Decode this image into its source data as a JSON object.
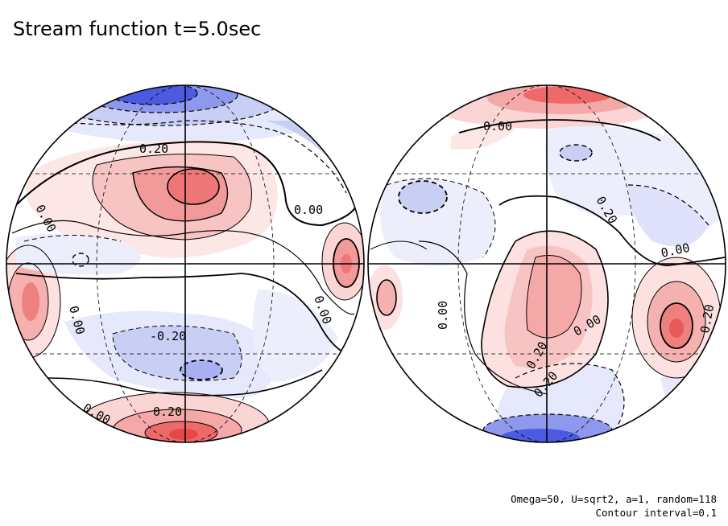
{
  "title": "Stream function t=5.0sec",
  "footer": {
    "params": "Omega=50, U=sqrt2, a=1, random=118",
    "contour": "Contour interval=0.1"
  },
  "colors": {
    "positive": "#e8464a",
    "negative": "#3c4ee0",
    "zero_bg": "#ffffff",
    "lines": "#000000"
  },
  "hemispheres": [
    {
      "name": "left-hemisphere",
      "labels": [
        "0.20",
        "0.00",
        "0.00",
        "0.00",
        "-0.20",
        "0.00",
        "0.20",
        "0.00"
      ]
    },
    {
      "name": "right-hemisphere",
      "labels": [
        "0.00",
        "0.20",
        "0.00",
        "0.00",
        "0.00",
        "0.20",
        "0.20",
        "0.20"
      ]
    }
  ]
}
